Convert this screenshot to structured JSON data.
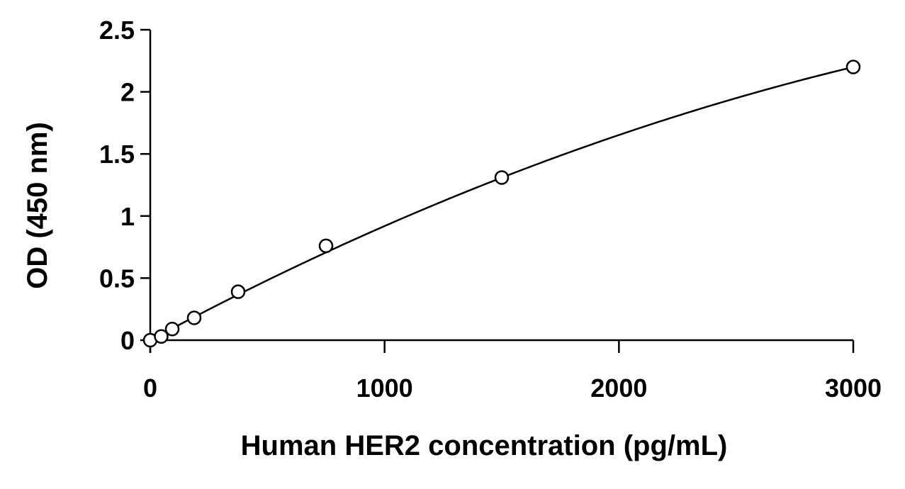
{
  "chart_data": {
    "type": "scatter",
    "title": "",
    "xlabel": "Human HER2 concentration (pg/mL)",
    "ylabel": "OD (450 nm)",
    "xlim": [
      0,
      3000
    ],
    "ylim": [
      0,
      2.5
    ],
    "x_ticks": [
      0,
      1000,
      2000,
      3000
    ],
    "y_ticks": [
      0,
      0.5,
      1,
      1.5,
      2,
      2.5
    ],
    "x_tick_labels": [
      "0",
      "1000",
      "2000",
      "3000"
    ],
    "y_tick_labels": [
      "0",
      "0.5",
      "1",
      "1.5",
      "2",
      "2.5"
    ],
    "grid": false,
    "legend": "none",
    "series": [
      {
        "x": [
          0,
          46.9,
          93.8,
          187.5,
          375,
          750,
          1500,
          3000
        ],
        "y": [
          0.0,
          0.03,
          0.09,
          0.18,
          0.39,
          0.76,
          1.31,
          2.2
        ],
        "marker": "open-circle",
        "color": "#000000"
      }
    ],
    "fit_curve": {
      "type": "polynomial-2",
      "coefficients": [
        0,
        0.001012,
        -9.29e-08
      ],
      "color": "#000000"
    }
  }
}
